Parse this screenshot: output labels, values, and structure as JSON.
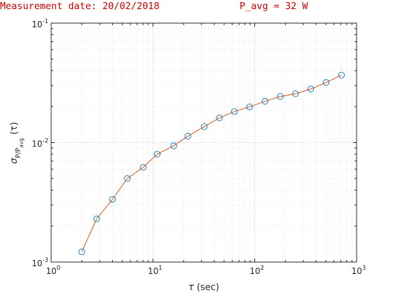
{
  "header": {
    "measurement_date": "Measurement date: 20/02/2018",
    "p_avg": "P_avg = 32 W"
  },
  "chart_data": {
    "type": "line",
    "x_scale": "log",
    "y_scale": "log",
    "xlim": [
      1,
      1000
    ],
    "ylim": [
      0.001,
      0.1
    ],
    "x_ticks": [
      {
        "base": "10",
        "exp": "0",
        "value": 1
      },
      {
        "base": "10",
        "exp": "1",
        "value": 10
      },
      {
        "base": "10",
        "exp": "2",
        "value": 100
      },
      {
        "base": "10",
        "exp": "3",
        "value": 1000
      }
    ],
    "y_ticks": [
      {
        "base": "10",
        "exp": "-3",
        "value": 0.001
      },
      {
        "base": "10",
        "exp": "-2",
        "value": 0.01
      },
      {
        "base": "10",
        "exp": "-1",
        "value": 0.1
      }
    ],
    "xlabel": {
      "symbol": "τ",
      "unit": "(sec)"
    },
    "ylabel": {
      "sigma": "σ",
      "sub": "P/P",
      "subsub": "avg",
      "arg": "(τ)"
    },
    "grid": "on (major and minor, dotted)",
    "line_color": "#d95319",
    "marker_color": "#0072bd",
    "marker": "circle",
    "series": [
      {
        "x": [
          2,
          2.8,
          4,
          5.6,
          8,
          11,
          16,
          22,
          32,
          45,
          63,
          89,
          126,
          178,
          251,
          355,
          502,
          710
        ],
        "values": [
          0.00122,
          0.0023,
          0.00335,
          0.005,
          0.0062,
          0.008,
          0.0094,
          0.0113,
          0.0136,
          0.0161,
          0.0182,
          0.0199,
          0.0222,
          0.0243,
          0.0256,
          0.0281,
          0.0318,
          0.0367
        ]
      }
    ]
  }
}
